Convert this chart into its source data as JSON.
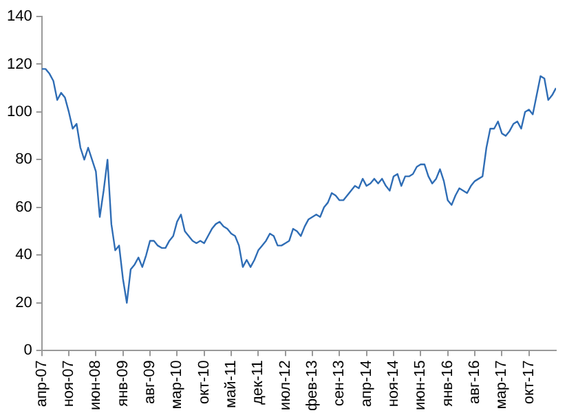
{
  "chart_data": {
    "type": "line",
    "color": "#2f6db5",
    "x": [
      "2007-04",
      "2007-05",
      "2007-06",
      "2007-07",
      "2007-08",
      "2007-09",
      "2007-10",
      "2007-11",
      "2007-12",
      "2008-01",
      "2008-02",
      "2008-03",
      "2008-04",
      "2008-05",
      "2008-06",
      "2008-07",
      "2008-08",
      "2008-09",
      "2008-10",
      "2008-11",
      "2008-12",
      "2009-01",
      "2009-02",
      "2009-03",
      "2009-04",
      "2009-05",
      "2009-06",
      "2009-07",
      "2009-08",
      "2009-09",
      "2009-10",
      "2009-11",
      "2009-12",
      "2010-01",
      "2010-02",
      "2010-03",
      "2010-04",
      "2010-05",
      "2010-06",
      "2010-07",
      "2010-08",
      "2010-09",
      "2010-10",
      "2010-11",
      "2010-12",
      "2011-01",
      "2011-02",
      "2011-03",
      "2011-04",
      "2011-05",
      "2011-06",
      "2011-07",
      "2011-08",
      "2011-09",
      "2011-10",
      "2011-11",
      "2011-12",
      "2012-01",
      "2012-02",
      "2012-03",
      "2012-04",
      "2012-05",
      "2012-06",
      "2012-07",
      "2012-08",
      "2012-09",
      "2012-10",
      "2012-11",
      "2012-12",
      "2013-01",
      "2013-02",
      "2013-03",
      "2013-04",
      "2013-05",
      "2013-06",
      "2013-07",
      "2013-08",
      "2013-09",
      "2013-10",
      "2013-11",
      "2013-12",
      "2014-01",
      "2014-02",
      "2014-03",
      "2014-04",
      "2014-05",
      "2014-06",
      "2014-07",
      "2014-08",
      "2014-09",
      "2014-10",
      "2014-11",
      "2014-12",
      "2015-01",
      "2015-02",
      "2015-03",
      "2015-04",
      "2015-05",
      "2015-06",
      "2015-07",
      "2015-08",
      "2015-09",
      "2015-10",
      "2015-11",
      "2015-12",
      "2016-01",
      "2016-02",
      "2016-03",
      "2016-04",
      "2016-05",
      "2016-06",
      "2016-07",
      "2016-08",
      "2016-09",
      "2016-10",
      "2016-11",
      "2016-12",
      "2017-01",
      "2017-02",
      "2017-03",
      "2017-04",
      "2017-05",
      "2017-06",
      "2017-07",
      "2017-08",
      "2017-09",
      "2017-10",
      "2017-11",
      "2017-12",
      "2018-01",
      "2018-02",
      "2018-03",
      "2018-04",
      "2018-05"
    ],
    "values": [
      118,
      118,
      116,
      113,
      105,
      108,
      106,
      100,
      93,
      95,
      85,
      80,
      85,
      80,
      75,
      56,
      67,
      80,
      53,
      42,
      44,
      30,
      20,
      34,
      36,
      39,
      35,
      40,
      46,
      46,
      44,
      43,
      43,
      46,
      48,
      54,
      57,
      50,
      48,
      46,
      45,
      46,
      45,
      48,
      51,
      53,
      54,
      52,
      51,
      49,
      48,
      44,
      35,
      38,
      35,
      38,
      42,
      44,
      46,
      49,
      48,
      44,
      44,
      45,
      46,
      51,
      50,
      48,
      52,
      55,
      56,
      57,
      56,
      60,
      62,
      66,
      65,
      63,
      63,
      65,
      67,
      69,
      68,
      72,
      69,
      70,
      72,
      70,
      72,
      69,
      67,
      73,
      74,
      69,
      73,
      73,
      74,
      77,
      78,
      78,
      73,
      70,
      72,
      76,
      71,
      63,
      61,
      65,
      68,
      67,
      66,
      69,
      71,
      72,
      73,
      85,
      93,
      93,
      96,
      91,
      90,
      92,
      95,
      96,
      93,
      100,
      101,
      99,
      107,
      115,
      114,
      105,
      107,
      110
    ],
    "xlim": [
      "2007-04",
      "2018-05"
    ],
    "xticks": [
      {
        "value": "2007-04",
        "label": "апр-07"
      },
      {
        "value": "2007-11",
        "label": "ноя-07"
      },
      {
        "value": "2008-06",
        "label": "июн-08"
      },
      {
        "value": "2009-01",
        "label": "янв-09"
      },
      {
        "value": "2009-08",
        "label": "авг-09"
      },
      {
        "value": "2010-03",
        "label": "мар-10"
      },
      {
        "value": "2010-10",
        "label": "окт-10"
      },
      {
        "value": "2011-05",
        "label": "май-11"
      },
      {
        "value": "2011-12",
        "label": "дек-11"
      },
      {
        "value": "2012-07",
        "label": "июл-12"
      },
      {
        "value": "2013-02",
        "label": "фев-13"
      },
      {
        "value": "2013-09",
        "label": "сен-13"
      },
      {
        "value": "2014-04",
        "label": "апр-14"
      },
      {
        "value": "2014-11",
        "label": "ноя-14"
      },
      {
        "value": "2015-06",
        "label": "июн-15"
      },
      {
        "value": "2016-01",
        "label": "янв-16"
      },
      {
        "value": "2016-08",
        "label": "авг-16"
      },
      {
        "value": "2017-03",
        "label": "мар-17"
      },
      {
        "value": "2017-10",
        "label": "окт-17"
      }
    ],
    "ylim": [
      0,
      140
    ],
    "yticks": [
      0,
      20,
      40,
      60,
      80,
      100,
      120,
      140
    ]
  }
}
